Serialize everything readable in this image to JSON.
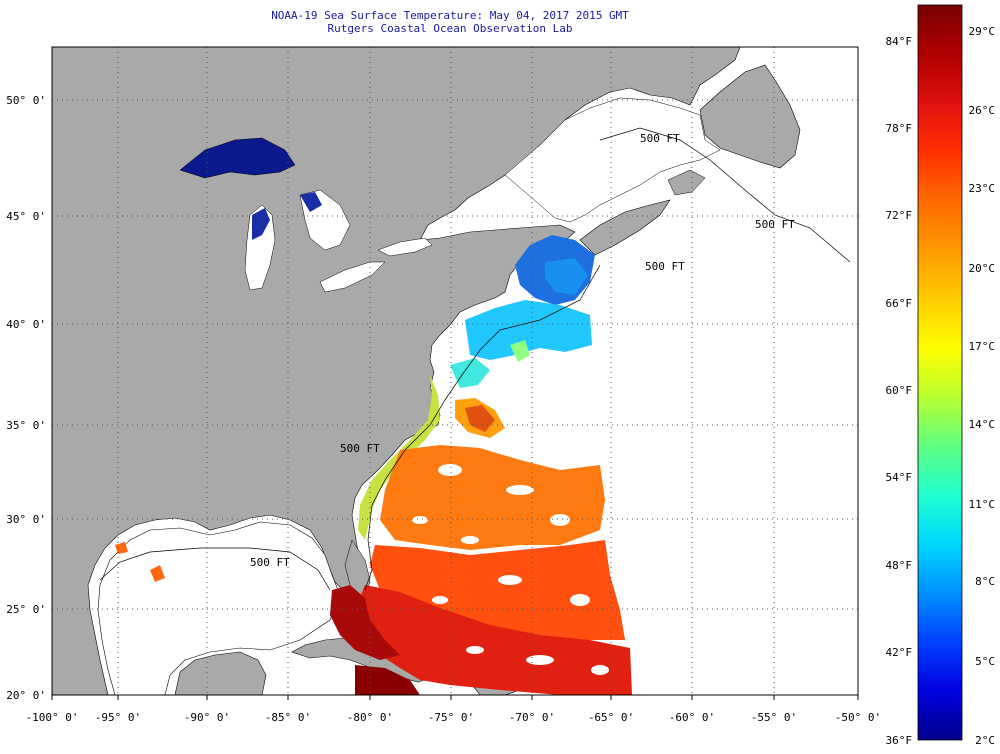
{
  "title": {
    "line1": "NOAA-19 Sea Surface Temperature:  May 04, 2017 2015 GMT",
    "line2": "Rutgers Coastal Ocean Observation Lab"
  },
  "colors": {
    "land": "#a9a9a9",
    "no_data": "#ffffff",
    "title_text": "#1a1aa0",
    "grid": "#555555"
  },
  "map": {
    "lon_labels": [
      "-100° 0'",
      "-95° 0'",
      "-90° 0'",
      "-85° 0'",
      "-80° 0'",
      "-75° 0'",
      "-70° 0'",
      "-65° 0'",
      "-60° 0'",
      "-55° 0'",
      "-50° 0'"
    ],
    "lat_labels": [
      "50° 0'",
      "45° 0'",
      "40° 0'",
      "35° 0'",
      "30° 0'",
      "25° 0'",
      "20° 0'"
    ],
    "isobath_labels": [
      "500 FT",
      "500 FT",
      "500 FT",
      "500 FT",
      "500 FT"
    ]
  },
  "colorbar": {
    "fahrenheit_labels": [
      "84°F",
      "78°F",
      "72°F",
      "66°F",
      "60°F",
      "54°F",
      "48°F",
      "42°F",
      "36°F"
    ],
    "celsius_labels": [
      "29°C",
      "26°C",
      "23°C",
      "20°C",
      "17°C",
      "14°C",
      "11°C",
      "8°C",
      "5°C",
      "2°C"
    ],
    "stops": [
      "#7a0000",
      "#b00000",
      "#e01010",
      "#ff3000",
      "#ff6a00",
      "#ff9a00",
      "#ffcc00",
      "#ffff00",
      "#b8ff30",
      "#60ff80",
      "#20ffd0",
      "#00d8ff",
      "#0090ff",
      "#0040ff",
      "#0000e0",
      "#00008a"
    ]
  }
}
